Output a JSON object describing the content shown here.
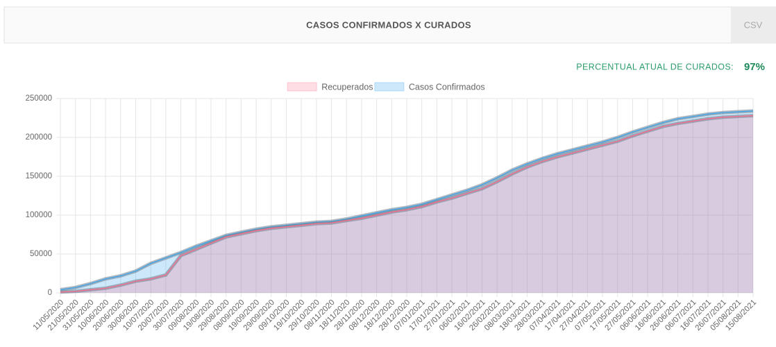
{
  "header": {
    "title": "CASOS CONFIRMADOS X CURADOS",
    "button": "CSV"
  },
  "summary": {
    "label": "PERCENTUAL ATUAL DE CURADOS:",
    "value": "97%"
  },
  "chart_data": {
    "type": "area",
    "categories": [
      "11/05/2020",
      "21/05/2020",
      "31/05/2020",
      "10/06/2020",
      "20/06/2020",
      "30/06/2020",
      "10/07/2020",
      "20/07/2020",
      "30/07/2020",
      "09/08/2020",
      "19/08/2020",
      "29/08/2020",
      "08/09/2020",
      "19/09/2020",
      "29/09/2020",
      "09/10/2020",
      "19/10/2020",
      "29/10/2020",
      "08/11/2020",
      "18/11/2020",
      "28/11/2020",
      "08/12/2020",
      "18/12/2020",
      "28/12/2020",
      "07/01/2021",
      "17/01/2021",
      "27/01/2021",
      "06/02/2021",
      "16/02/2021",
      "26/02/2021",
      "08/03/2021",
      "18/03/2021",
      "28/03/2021",
      "07/04/2021",
      "17/04/2021",
      "27/04/2021",
      "07/05/2021",
      "17/05/2021",
      "27/05/2021",
      "06/06/2021",
      "16/06/2021",
      "26/06/2021",
      "06/07/2021",
      "16/07/2021",
      "26/07/2021",
      "05/08/2021",
      "15/08/2021"
    ],
    "series": [
      {
        "name": "Recuperados",
        "color": "#ff6384",
        "fill": "rgba(255,99,132,0.22)",
        "values": [
          1000,
          2000,
          4000,
          6000,
          10000,
          15000,
          18000,
          23000,
          48000,
          56000,
          64000,
          72000,
          76000,
          80000,
          83000,
          85000,
          87000,
          89000,
          90000,
          93000,
          96000,
          100000,
          104000,
          107000,
          111000,
          117000,
          122000,
          128000,
          134000,
          143000,
          153000,
          162000,
          169000,
          175000,
          180000,
          185000,
          190000,
          195000,
          202000,
          208000,
          214000,
          218000,
          221000,
          224000,
          226000,
          227000,
          228000
        ]
      },
      {
        "name": "Casos Confirmados",
        "color": "#36a2eb",
        "fill": "rgba(54,162,235,0.25)",
        "values": [
          4000,
          7000,
          12000,
          18000,
          22000,
          28000,
          38000,
          45000,
          52000,
          60000,
          67000,
          74000,
          78000,
          82000,
          85000,
          87000,
          89000,
          91000,
          92000,
          95000,
          99000,
          103000,
          107000,
          110000,
          114000,
          120000,
          126000,
          132000,
          139000,
          148000,
          158000,
          166000,
          173000,
          179000,
          184000,
          189000,
          194000,
          200000,
          207000,
          213000,
          219000,
          224000,
          227000,
          230000,
          232000,
          233000,
          234000
        ]
      }
    ],
    "ylim": [
      0,
      250000
    ],
    "yticks": [
      0,
      50000,
      100000,
      150000,
      200000,
      250000
    ],
    "grid": true,
    "legend": "top"
  }
}
